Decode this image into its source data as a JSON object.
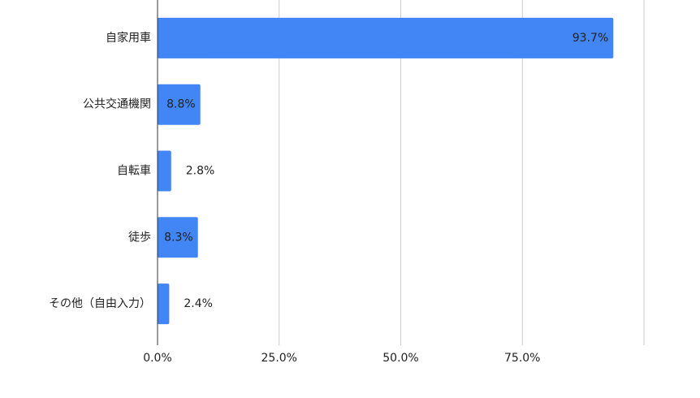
{
  "chart_data": {
    "type": "bar",
    "orientation": "horizontal",
    "categories": [
      "自家用車",
      "公共交通機関",
      "自転車",
      "徒歩",
      "その他（自由入力）"
    ],
    "values": [
      93.7,
      8.8,
      2.8,
      8.3,
      2.4
    ],
    "value_labels": [
      "93.7%",
      "8.8%",
      "2.8%",
      "8.3%",
      "2.4%"
    ],
    "color": "#4285f4",
    "xlim": [
      0,
      100
    ],
    "xticks": [
      {
        "value": 0,
        "label": "0.0%"
      },
      {
        "value": 25,
        "label": "25.0%"
      },
      {
        "value": 50,
        "label": "50.0%"
      },
      {
        "value": 75,
        "label": "75.0%"
      }
    ],
    "grid": true
  }
}
